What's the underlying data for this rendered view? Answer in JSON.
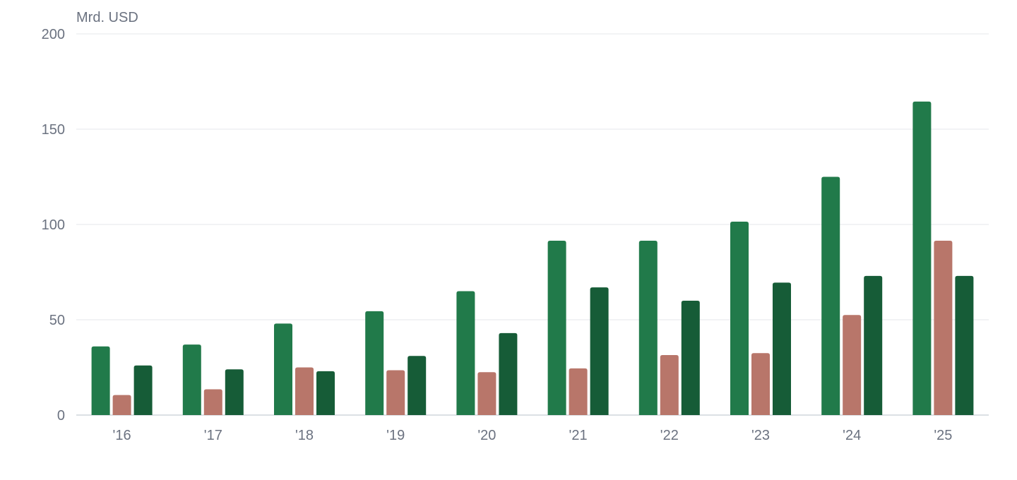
{
  "chart_data": {
    "type": "bar",
    "unit_label": "Mrd. USD",
    "categories": [
      "'16",
      "'17",
      "'18",
      "'19",
      "'20",
      "'21",
      "'22",
      "'23",
      "'24",
      "'25"
    ],
    "series": [
      {
        "color": "#217a4a",
        "values": [
          36,
          37,
          48,
          54.5,
          65,
          91.5,
          91.5,
          101.5,
          125,
          164.5
        ]
      },
      {
        "color": "#b8766a",
        "values": [
          10.5,
          13.5,
          25,
          23.5,
          22.5,
          24.5,
          31.5,
          32.5,
          52.5,
          91.5
        ]
      },
      {
        "color": "#165c37",
        "values": [
          26,
          24,
          23,
          31,
          43,
          67,
          60,
          69.5,
          73,
          73
        ]
      }
    ],
    "y_ticks": [
      0,
      50,
      100,
      150,
      200
    ],
    "ylim": [
      0,
      200
    ],
    "grid": true,
    "legend": "none"
  }
}
